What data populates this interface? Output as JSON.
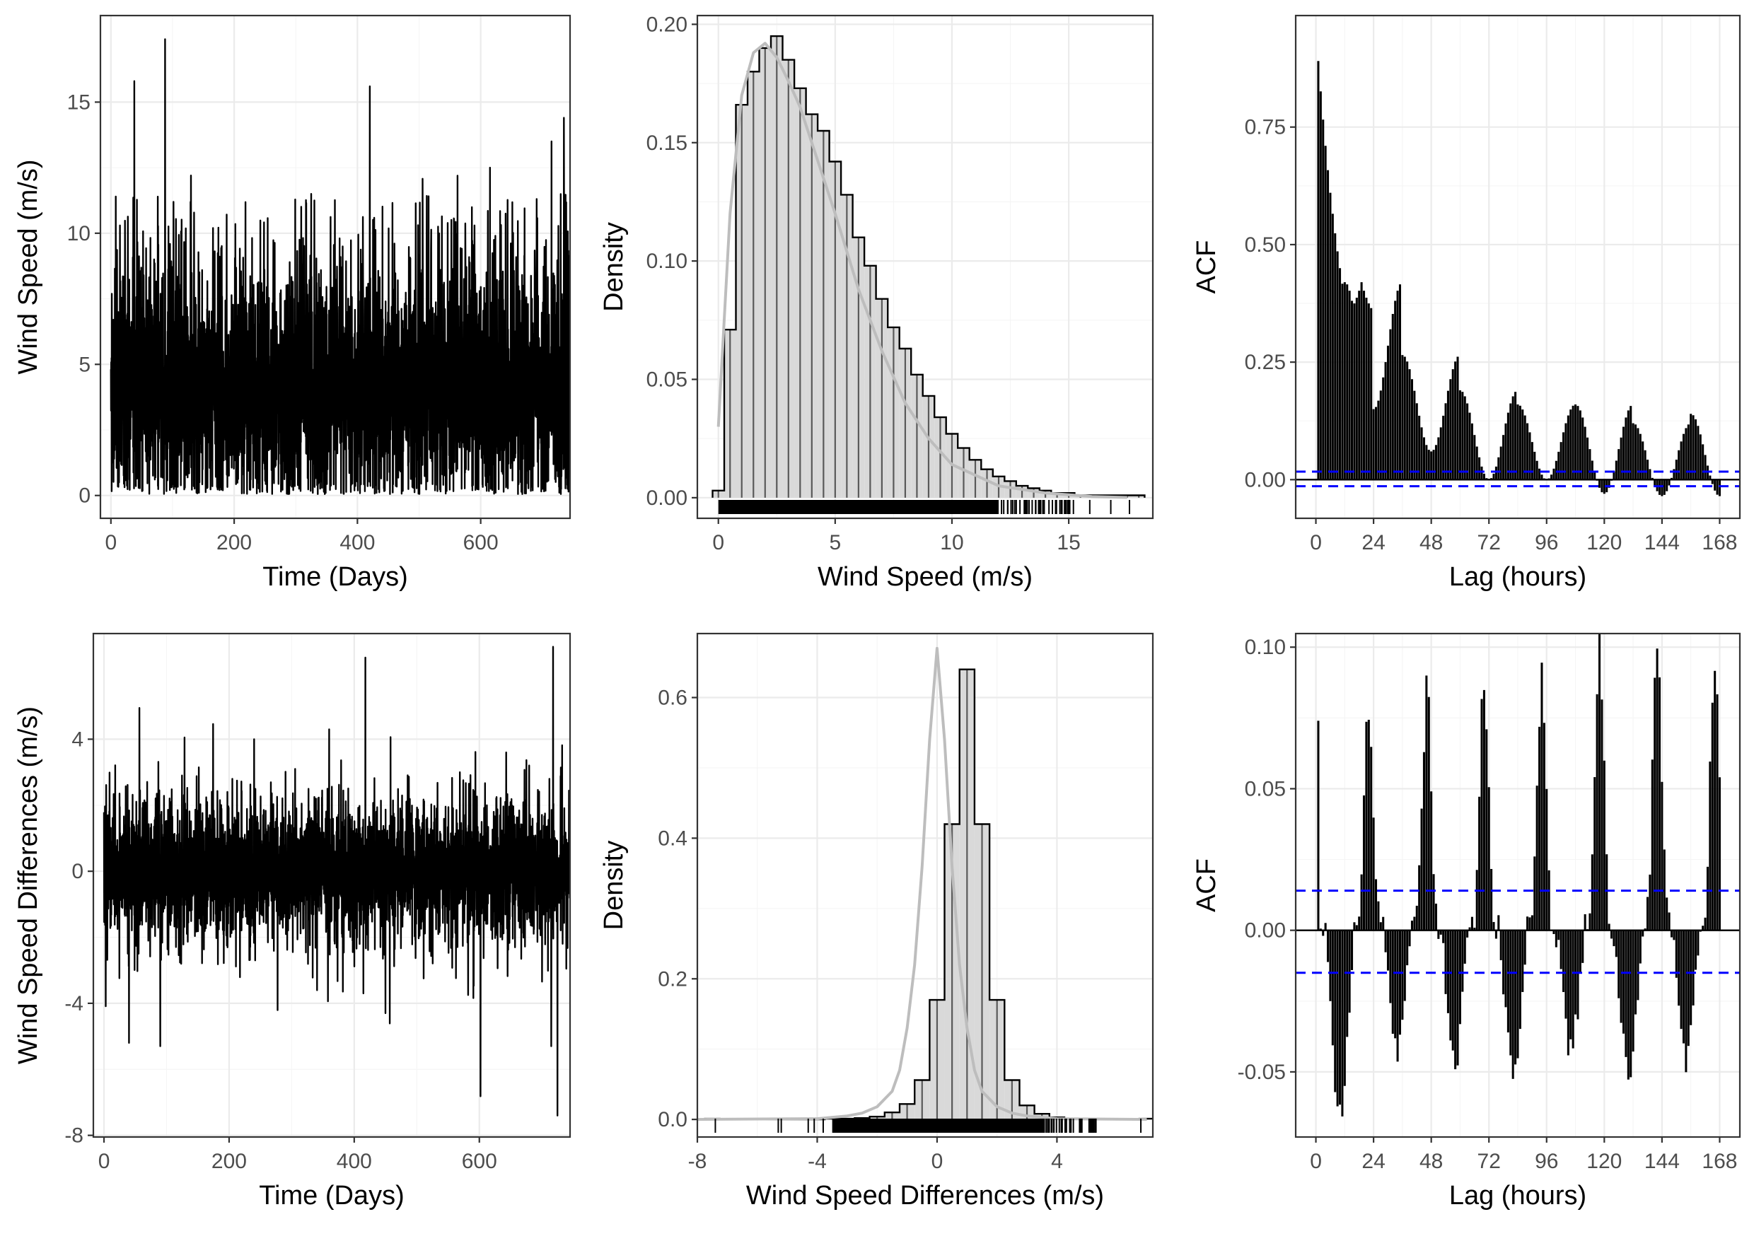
{
  "colors": {
    "series": "#000000",
    "histogram_fill": "#d9d9d9",
    "histogram_bars": "#595959",
    "density_curve": "#bdbdbd",
    "confidence_band": "#0000ff",
    "grid": "#ebebeb",
    "panel_border": "#333333"
  },
  "chart_data": [
    {
      "id": "ts-speed",
      "type": "line",
      "xlabel": "Time (Days)",
      "ylabel": "Wind Speed (m/s)",
      "xlim": [
        -17,
        745
      ],
      "ylim": [
        -0.87,
        18.3
      ],
      "xticks": [
        0,
        200,
        400,
        600
      ],
      "yticks": [
        0,
        5,
        10,
        15
      ],
      "ytick_labels": [
        "0",
        "5",
        "10",
        "15"
      ],
      "n_days": 745,
      "mean_level": 4.0,
      "spread": 2.0,
      "notable_peaks": [
        {
          "x": 8,
          "y": 11.4
        },
        {
          "x": 38,
          "y": 15.8
        },
        {
          "x": 88,
          "y": 17.4
        },
        {
          "x": 130,
          "y": 12.2
        },
        {
          "x": 325,
          "y": 11.5
        },
        {
          "x": 420,
          "y": 15.6
        },
        {
          "x": 615,
          "y": 12.5
        },
        {
          "x": 715,
          "y": 13.5
        },
        {
          "x": 735,
          "y": 14.4
        }
      ]
    },
    {
      "id": "hist-speed",
      "type": "bar",
      "xlabel": "Wind Speed (m/s)",
      "ylabel": "Density",
      "xlim": [
        -0.9,
        18.6
      ],
      "ylim": [
        -0.0087,
        0.2037
      ],
      "xticks": [
        0,
        5,
        10,
        15
      ],
      "yticks": [
        0,
        0.05,
        0.1,
        0.15,
        0.2
      ],
      "ytick_labels": [
        "0.00",
        "0.05",
        "0.10",
        "0.15",
        "0.20"
      ],
      "bin_width": 0.5,
      "bin_start": -0.25,
      "values": [
        0.003,
        0.071,
        0.166,
        0.18,
        0.19,
        0.195,
        0.185,
        0.173,
        0.162,
        0.155,
        0.142,
        0.128,
        0.11,
        0.098,
        0.084,
        0.072,
        0.063,
        0.052,
        0.043,
        0.034,
        0.027,
        0.021,
        0.016,
        0.012,
        0.009,
        0.007,
        0.005,
        0.004,
        0.003,
        0.002,
        0.002,
        0.001,
        0.001,
        0.001,
        0.001,
        0.001,
        0.001
      ],
      "density": {
        "x": [
          0,
          0.5,
          1,
          1.5,
          2,
          2.5,
          3,
          3.5,
          4,
          5,
          6,
          7,
          8,
          9,
          10,
          12,
          14,
          16,
          17.5
        ],
        "y": [
          0.03,
          0.12,
          0.17,
          0.188,
          0.192,
          0.186,
          0.176,
          0.165,
          0.15,
          0.12,
          0.088,
          0.062,
          0.04,
          0.025,
          0.014,
          0.005,
          0.002,
          0.0005,
          0.0001
        ]
      },
      "rug": {
        "min": 0,
        "max": 17.6,
        "dense_until": 12.0,
        "sparse": [
          12.6,
          13.1,
          13.8,
          14.3,
          15.2,
          15.9,
          16.8,
          17.6
        ]
      }
    },
    {
      "id": "acf-speed",
      "type": "bar",
      "xlabel": "Lag (hours)",
      "ylabel": "ACF",
      "xlim": [
        -8.4,
        176.4
      ],
      "ylim": [
        -0.0822,
        0.9872
      ],
      "xticks": [
        0,
        24,
        48,
        72,
        96,
        120,
        144,
        168
      ],
      "yticks": [
        0,
        0.25,
        0.5,
        0.75
      ],
      "ytick_labels": [
        "0.00",
        "0.25",
        "0.50",
        "0.75"
      ],
      "max_lag": 168,
      "lag1": 0.94,
      "decay_rate": 0.06,
      "peak_at_24": 0.42,
      "peak_at_168": 0.14,
      "trough_at_36": 0.15,
      "troughs_by_day": [
        0.15,
        0.06,
        0.0,
        0.0,
        -0.03,
        -0.035
      ],
      "confidence_band": [
        -0.014,
        0.017
      ]
    },
    {
      "id": "ts-diff",
      "type": "line",
      "xlabel": "Time (Days)",
      "ylabel": "Wind Speed Differences (m/s)",
      "xlim": [
        -17,
        745
      ],
      "ylim": [
        -8.05,
        7.2
      ],
      "xticks": [
        0,
        200,
        400,
        600
      ],
      "yticks": [
        -8,
        -4,
        0,
        4
      ],
      "ytick_labels": [
        "-8",
        "-4",
        "0",
        "4"
      ],
      "n_days": 745,
      "mean_level": 0,
      "spread": 1.0,
      "notable_peaks": [
        {
          "x": 90,
          "y": 4.8
        },
        {
          "x": 240,
          "y": 4.0
        },
        {
          "x": 360,
          "y": 4.3
        },
        {
          "x": 718,
          "y": 6.8
        },
        {
          "x": 40,
          "y": -5.2
        },
        {
          "x": 90,
          "y": -5.3
        },
        {
          "x": 450,
          "y": -4.3
        },
        {
          "x": 715,
          "y": -5.3
        },
        {
          "x": 725,
          "y": -7.4
        }
      ]
    },
    {
      "id": "hist-diff",
      "type": "bar",
      "xlabel": "Wind Speed Differences (m/s)",
      "ylabel": "Density",
      "xlim": [
        -8.0,
        7.2
      ],
      "ylim": [
        -0.025,
        0.691
      ],
      "xticks": [
        -8,
        -4,
        0,
        4
      ],
      "xtick_labels": [
        "-8",
        "-4",
        "0",
        "4"
      ],
      "yticks": [
        0,
        0.2,
        0.4,
        0.6
      ],
      "ytick_labels": [
        "0.0",
        "0.2",
        "0.4",
        "0.6"
      ],
      "bin_width": 0.5,
      "bin_start": -7.75,
      "values": [
        0.001,
        0.0,
        0.0,
        0.0,
        0.0,
        0.0,
        0.0,
        0.0,
        0.001,
        0.001,
        0.002,
        0.004,
        0.01,
        0.022,
        0.056,
        0.17,
        0.42,
        0.64,
        0.42,
        0.17,
        0.056,
        0.02,
        0.008,
        0.003,
        0.001,
        0.001,
        0.0,
        0.0,
        0.0,
        0.001
      ],
      "density": {
        "x": [
          -8,
          -4,
          -3,
          -2.5,
          -2,
          -1.5,
          -1.25,
          -1,
          -0.75,
          -0.5,
          -0.25,
          0,
          0.25,
          0.5,
          0.75,
          1,
          1.25,
          1.5,
          2,
          2.5,
          3,
          4,
          7
        ],
        "y": [
          0.0,
          0.001,
          0.005,
          0.009,
          0.018,
          0.04,
          0.07,
          0.13,
          0.22,
          0.36,
          0.54,
          0.67,
          0.54,
          0.36,
          0.22,
          0.13,
          0.07,
          0.04,
          0.018,
          0.009,
          0.005,
          0.001,
          0.0
        ]
      },
      "rug": {
        "min": -7.4,
        "max": 6.8,
        "dense_from": -3.5,
        "dense_until": 3.6,
        "sparse": [
          -7.4,
          -5.3,
          -5.2,
          -4.3,
          -4.1,
          -3.8,
          3.9,
          4.3,
          4.8,
          6.8
        ]
      }
    },
    {
      "id": "acf-diff",
      "type": "bar",
      "xlabel": "Lag (hours)",
      "ylabel": "ACF",
      "xlim": [
        -8.4,
        176.4
      ],
      "ylim": [
        -0.073,
        0.1048
      ],
      "xticks": [
        0,
        24,
        48,
        72,
        96,
        120,
        144,
        168
      ],
      "yticks": [
        -0.05,
        0,
        0.05,
        0.1
      ],
      "ytick_labels": [
        "-0.05",
        "0.00",
        "0.05",
        "0.10"
      ],
      "max_lag": 168,
      "lag1": 0.074,
      "peaks": [
        0.085,
        0.077,
        0.093,
        0.085,
        0.09,
        0.099,
        0.097
      ],
      "troughs": [
        -0.064,
        -0.043,
        -0.045,
        -0.05,
        -0.042,
        -0.05,
        -0.048
      ],
      "confidence_band": [
        -0.015,
        0.014
      ]
    }
  ]
}
